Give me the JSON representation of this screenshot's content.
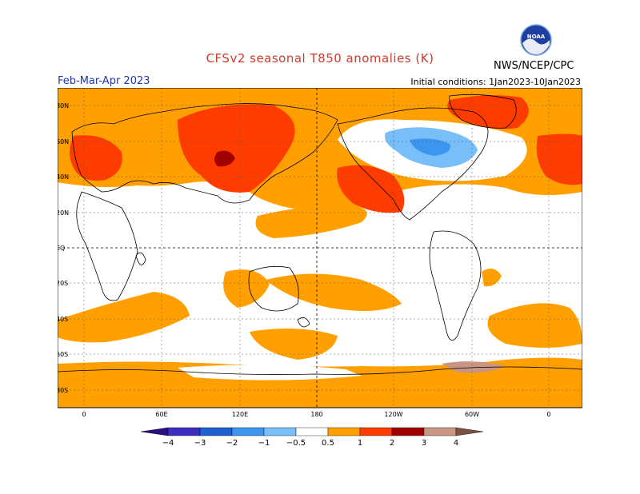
{
  "header": {
    "title": "CFSv2 seasonal T850 anomalies (K)",
    "period": "Feb-Mar-Apr 2023",
    "initial_conditions": "Initial conditions: 1Jan2023-10Jan2023",
    "agency": "NWS/NCEP/CPC",
    "logo_text": "NOAA"
  },
  "map": {
    "lat_labels": [
      "80N",
      "60N",
      "40N",
      "20N",
      "EQ",
      "20S",
      "40S",
      "60S",
      "80S"
    ],
    "lon_labels": [
      "0",
      "60E",
      "120E",
      "180",
      "120W",
      "60W",
      "0"
    ]
  },
  "colorbar": {
    "labels": [
      "−4",
      "−3",
      "−2",
      "−1",
      "−0.5",
      "0.5",
      "1",
      "2",
      "3",
      "4"
    ],
    "colors": {
      "below_-4": "#2a0e82",
      "-4_-3": "#3c2ec0",
      "-3_-2": "#1e60d0",
      "-2_-1": "#3c96f0",
      "-1_-0.5": "#78bef8",
      "-0.5_0.5": "#ffffff",
      "0.5_1": "#ffa000",
      "1_2": "#ff3c00",
      "2_3": "#a00000",
      "3_4": "#c89682",
      "above_4": "#7d5044"
    }
  }
}
